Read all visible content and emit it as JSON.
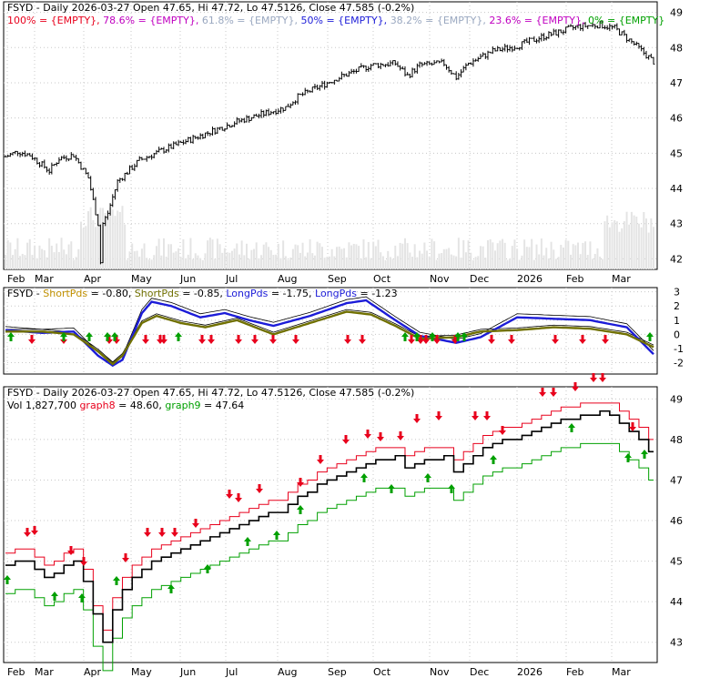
{
  "chart_data": [
    {
      "type": "candlestick",
      "title": "FSYD - Daily 2026-03-27 Open 47.65, Hi 47.72, Lo 47.5126, Close 47.585 (-0.2%)",
      "fib_legend": [
        {
          "text": "100% = {EMPTY}",
          "color": "#e8001c"
        },
        {
          "text": "78.6% = {EMPTY}",
          "color": "#c000c0"
        },
        {
          "text": "61.8% = {EMPTY}",
          "color": "#9aa8c0"
        },
        {
          "text": "50% = {EMPTY}",
          "color": "#1c1cd8"
        },
        {
          "text": "38.2% = {EMPTY}",
          "color": "#9aa8c0"
        },
        {
          "text": "23.6% = {EMPTY}",
          "color": "#c000c0"
        },
        {
          "text": "0% = {EMPTY}",
          "color": "#00a000"
        }
      ],
      "x_ticks": [
        "Feb",
        "Mar",
        "Apr",
        "May",
        "Jun",
        "Jul",
        "Aug",
        "Sep",
        "Oct",
        "Nov",
        "Dec",
        "2026",
        "Feb",
        "Mar"
      ],
      "y_ticks": [
        42,
        43,
        44,
        45,
        46,
        47,
        48,
        49
      ],
      "ylim": [
        41.7,
        49.3
      ],
      "price_keypoints": [
        [
          0,
          44.9
        ],
        [
          5,
          45.05
        ],
        [
          10,
          44.95
        ],
        [
          18,
          44.5
        ],
        [
          22,
          44.85
        ],
        [
          28,
          44.95
        ],
        [
          34,
          44.3
        ],
        [
          38,
          43.0
        ],
        [
          39,
          41.9
        ],
        [
          40,
          43.0
        ],
        [
          42,
          43.3
        ],
        [
          46,
          44.2
        ],
        [
          55,
          44.8
        ],
        [
          65,
          45.1
        ],
        [
          80,
          45.5
        ],
        [
          95,
          45.9
        ],
        [
          105,
          46.1
        ],
        [
          115,
          46.3
        ],
        [
          120,
          46.6
        ],
        [
          135,
          47.1
        ],
        [
          150,
          47.5
        ],
        [
          160,
          47.55
        ],
        [
          165,
          47.2
        ],
        [
          170,
          47.5
        ],
        [
          180,
          47.55
        ],
        [
          185,
          47.15
        ],
        [
          190,
          47.55
        ],
        [
          200,
          47.9
        ],
        [
          210,
          48.05
        ],
        [
          220,
          48.3
        ],
        [
          235,
          48.6
        ],
        [
          244,
          48.65
        ],
        [
          250,
          48.55
        ],
        [
          258,
          48.1
        ],
        [
          262,
          47.85
        ],
        [
          266,
          47.6
        ]
      ]
    },
    {
      "type": "line",
      "title_parts": [
        {
          "text": "FSYD - ",
          "color": "#000000"
        },
        {
          "text": "ShortPds",
          "color": "#c09000"
        },
        {
          "text": " = -0.80, ",
          "color": "#000000"
        },
        {
          "text": "ShortPds",
          "color": "#707000"
        },
        {
          "text": " = -0.85, ",
          "color": "#000000"
        },
        {
          "text": "LongPds",
          "color": "#1c1cd8"
        },
        {
          "text": " = -1.75, ",
          "color": "#000000"
        },
        {
          "text": "LongPds",
          "color": "#1c1cd8"
        },
        {
          "text": " = -1.23",
          "color": "#000000"
        }
      ],
      "y_ticks": [
        3,
        2,
        1,
        0,
        -1,
        -2
      ],
      "ylim": [
        -2.8,
        3.3
      ],
      "long_keypoints": [
        [
          0,
          0.3
        ],
        [
          15,
          0.1
        ],
        [
          28,
          0.2
        ],
        [
          38,
          -1.5
        ],
        [
          44,
          -2.2
        ],
        [
          48,
          -1.8
        ],
        [
          56,
          1.5
        ],
        [
          60,
          2.3
        ],
        [
          68,
          2.0
        ],
        [
          80,
          1.2
        ],
        [
          90,
          1.5
        ],
        [
          100,
          1.0
        ],
        [
          110,
          0.6
        ],
        [
          125,
          1.3
        ],
        [
          140,
          2.2
        ],
        [
          148,
          2.4
        ],
        [
          160,
          1.0
        ],
        [
          170,
          -0.1
        ],
        [
          185,
          -0.6
        ],
        [
          195,
          -0.2
        ],
        [
          210,
          1.2
        ],
        [
          225,
          1.1
        ],
        [
          240,
          1.0
        ],
        [
          255,
          0.5
        ],
        [
          266,
          -1.4
        ]
      ],
      "short_keypoints": [
        [
          0,
          0.2
        ],
        [
          15,
          0.2
        ],
        [
          28,
          0.0
        ],
        [
          38,
          -1.2
        ],
        [
          44,
          -2.1
        ],
        [
          48,
          -1.5
        ],
        [
          56,
          0.8
        ],
        [
          62,
          1.3
        ],
        [
          72,
          0.8
        ],
        [
          82,
          0.5
        ],
        [
          95,
          1.0
        ],
        [
          110,
          0.0
        ],
        [
          125,
          0.8
        ],
        [
          140,
          1.6
        ],
        [
          150,
          1.4
        ],
        [
          160,
          0.6
        ],
        [
          170,
          -0.3
        ],
        [
          185,
          -0.2
        ],
        [
          195,
          0.2
        ],
        [
          210,
          0.3
        ],
        [
          225,
          0.5
        ],
        [
          240,
          0.4
        ],
        [
          255,
          0.0
        ],
        [
          266,
          -0.9
        ]
      ]
    },
    {
      "type": "stairs",
      "title": "FSYD - Daily 2026-03-27 Open 47.65, Hi 47.72, Lo 47.5126, Close 47.585 (-0.2%)",
      "subtitle_parts": [
        {
          "text": "Vol 1,827,700 ",
          "color": "#000000"
        },
        {
          "text": "graph8",
          "color": "#e8001c"
        },
        {
          "text": " = 48.60, ",
          "color": "#000000"
        },
        {
          "text": "graph9",
          "color": "#00a000"
        },
        {
          "text": " = 47.64",
          "color": "#000000"
        }
      ],
      "x_ticks": [
        "Feb",
        "Mar",
        "Apr",
        "May",
        "Jun",
        "Jul",
        "Aug",
        "Sep",
        "Oct",
        "Nov",
        "Dec",
        "2026",
        "Feb",
        "Mar"
      ],
      "y_ticks": [
        43,
        44,
        45,
        46,
        47,
        48,
        49
      ],
      "ylim": [
        42.5,
        49.3
      ],
      "graph8": 48.6,
      "graph9": 47.64
    }
  ],
  "colors": {
    "up": "#00a000",
    "down": "#e8001c",
    "long": "#1c1cd8",
    "short": "#707000",
    "grid": "#c8c8c8"
  }
}
